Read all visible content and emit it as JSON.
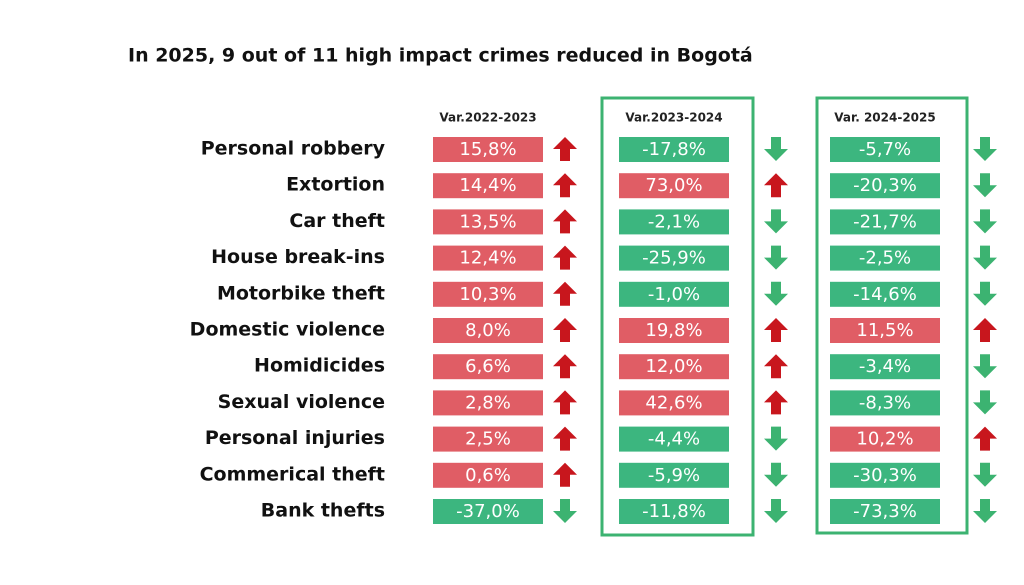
{
  "title": "In 2025, 9 out of 11 high impact crimes reduced in Bogotá",
  "table": {
    "headers": [
      "Var.2022-2023",
      "Var.2023-2024",
      "Var. 2024-2025"
    ],
    "rows": [
      {
        "label": "Personal robbery",
        "values": [
          "15,8%",
          "-17,8%",
          "-5,7%"
        ]
      },
      {
        "label": "Extortion",
        "values": [
          "14,4%",
          "73,0%",
          "-20,3%"
        ]
      },
      {
        "label": "Car theft",
        "values": [
          "13,5%",
          "-2,1%",
          "-21,7%"
        ]
      },
      {
        "label": "House break-ins",
        "values": [
          "12,4%",
          "-25,9%",
          "-2,5%"
        ]
      },
      {
        "label": "Motorbike theft",
        "values": [
          "10,3%",
          "-1,0%",
          "-14,6%"
        ]
      },
      {
        "label": "Domestic violence",
        "values": [
          "8,0%",
          "19,8%",
          "11,5%"
        ]
      },
      {
        "label": "Homidicides",
        "values": [
          "6,6%",
          "12,0%",
          "-3,4%"
        ]
      },
      {
        "label": "Sexual  violence",
        "values": [
          "2,8%",
          "42,6%",
          "-8,3%"
        ]
      },
      {
        "label": "Personal injuries",
        "values": [
          "2,5%",
          "-4,4%",
          "10,2%"
        ]
      },
      {
        "label": "Commerical theft",
        "values": [
          "0,6%",
          "-5,9%",
          "-30,3%"
        ]
      },
      {
        "label": "Bank thefts",
        "values": [
          "-37,0%",
          "-11,8%",
          "-73,3%"
        ]
      }
    ]
  }
}
